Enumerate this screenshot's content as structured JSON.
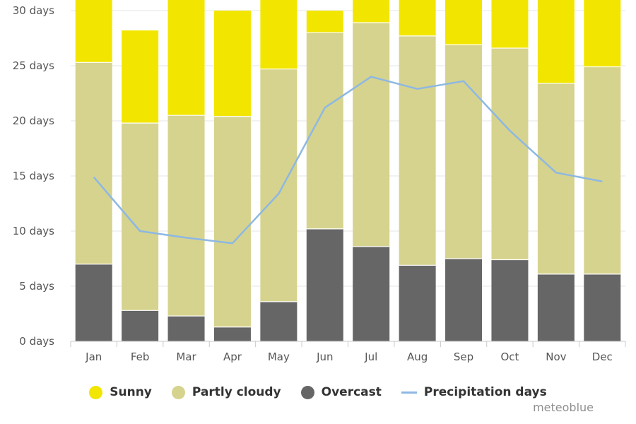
{
  "chart_data": {
    "type": "bar",
    "stacked": true,
    "categories": [
      "Jan",
      "Feb",
      "Mar",
      "Apr",
      "May",
      "Jun",
      "Jul",
      "Aug",
      "Sep",
      "Oct",
      "Nov",
      "Dec"
    ],
    "series": [
      {
        "name": "Overcast",
        "type": "bar",
        "color": "#666666",
        "values": [
          7.0,
          2.8,
          2.3,
          1.3,
          3.6,
          10.2,
          8.6,
          6.9,
          7.5,
          7.4,
          6.1,
          6.1
        ]
      },
      {
        "name": "Partly cloudy",
        "type": "bar",
        "color": "#d6d38e",
        "values": [
          18.3,
          17.0,
          18.2,
          19.1,
          21.1,
          17.8,
          20.3,
          20.8,
          19.4,
          19.2,
          17.3,
          18.8
        ]
      },
      {
        "name": "Sunny",
        "type": "bar",
        "color": "#f2e600",
        "values": [
          5.7,
          8.4,
          10.5,
          9.6,
          6.3,
          2.0,
          2.1,
          3.3,
          4.1,
          4.4,
          7.6,
          6.1
        ]
      },
      {
        "name": "Precipitation days",
        "type": "line",
        "color": "#8db8e3",
        "values": [
          14.9,
          10.0,
          9.4,
          8.9,
          13.4,
          21.2,
          24.0,
          22.9,
          23.6,
          19.1,
          15.3,
          14.5
        ]
      }
    ],
    "y_tick_labels": [
      "0 days",
      "5 days",
      "10 days",
      "15 days",
      "20 days",
      "25 days",
      "30 days"
    ],
    "ylim": [
      0,
      30
    ],
    "grid": true,
    "legend_position": "bottom-center"
  },
  "legend": {
    "sunny": {
      "label": "Sunny",
      "color": "#f2e600"
    },
    "partly_cloudy": {
      "label": "Partly cloudy",
      "color": "#d6d38e"
    },
    "overcast": {
      "label": "Overcast",
      "color": "#666666"
    },
    "precipitation": {
      "label": "Precipitation days",
      "color": "#8db8e3"
    }
  },
  "credit": "meteoblue"
}
